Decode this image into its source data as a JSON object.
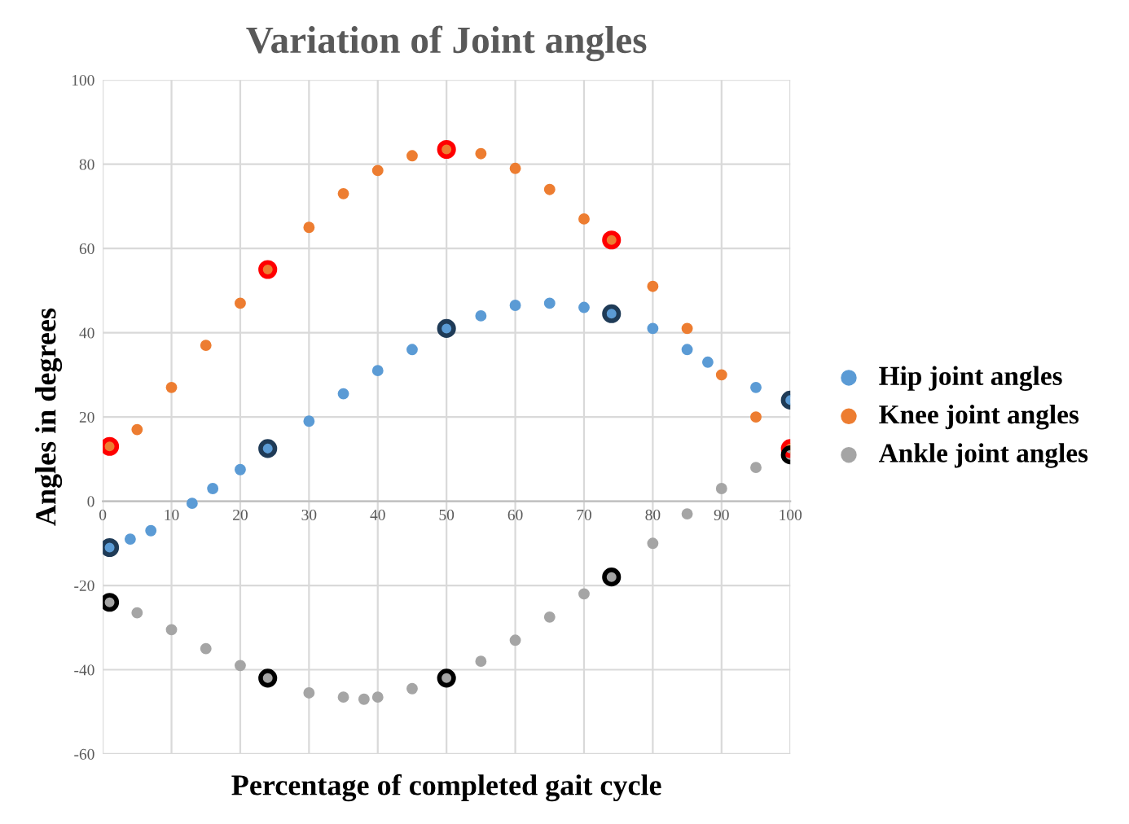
{
  "chart_data": {
    "type": "scatter",
    "title": "Variation of Joint angles",
    "xlabel": "Percentage of completed gait cycle",
    "ylabel": "Angles in degrees",
    "xlim": [
      0,
      100
    ],
    "xticks": [
      0,
      10,
      20,
      30,
      40,
      50,
      60,
      70,
      80,
      90,
      100
    ],
    "ylim": [
      -60,
      100
    ],
    "yticks": [
      -60,
      -40,
      -20,
      0,
      20,
      40,
      60,
      80,
      100
    ],
    "grid": true,
    "legend": "right",
    "marker": "circle",
    "series": [
      {
        "name": "Hip joint angles",
        "color": "#5b9bd5",
        "x": [
          1,
          4,
          7,
          13,
          16,
          20,
          24,
          30,
          35,
          40,
          45,
          50,
          55,
          60,
          65,
          70,
          74,
          80,
          85,
          88,
          95,
          100
        ],
        "values": [
          -11,
          -9,
          -7,
          -0.5,
          3,
          7.5,
          12.5,
          19,
          25.5,
          31,
          36,
          41,
          44,
          46.5,
          47,
          46,
          44.5,
          41,
          36,
          33,
          27,
          24
        ]
      },
      {
        "name": "Knee joint angles",
        "color": "#ed7d31",
        "x": [
          1,
          5,
          10,
          15,
          20,
          24,
          30,
          35,
          40,
          45,
          50,
          55,
          60,
          65,
          70,
          74,
          80,
          85,
          90,
          95,
          100
        ],
        "values": [
          13,
          17,
          27,
          37,
          47,
          55,
          65,
          73,
          78.5,
          82,
          83.5,
          82.5,
          79,
          74,
          67,
          62,
          51,
          41,
          30,
          20,
          12.5
        ]
      },
      {
        "name": "Ankle joint angles",
        "color": "#a5a5a5",
        "x": [
          1,
          5,
          10,
          15,
          20,
          24,
          30,
          35,
          38,
          40,
          45,
          50,
          55,
          60,
          65,
          70,
          74,
          80,
          85,
          90,
          95,
          100
        ],
        "values": [
          -24,
          -26.5,
          -30.5,
          -35,
          -39,
          -42,
          -45.5,
          -46.5,
          -47,
          -46.5,
          -44.5,
          -42,
          -38,
          -33,
          -27.5,
          -22,
          -18,
          -10,
          -3,
          3,
          8,
          11
        ]
      },
      {
        "color": "#ff0000",
        "x": [
          1,
          24,
          50,
          74,
          100
        ],
        "values": [
          13,
          55,
          83.5,
          62,
          12.5
        ]
      },
      {
        "color": "#1f3b57",
        "x": [
          1,
          24,
          50,
          74,
          100
        ],
        "values": [
          -11,
          12.5,
          41,
          44.5,
          24
        ]
      },
      {
        "color": "#000000",
        "x": [
          1,
          24,
          50,
          74,
          100
        ],
        "values": [
          -24,
          -42,
          -42,
          -18,
          11
        ]
      }
    ]
  }
}
